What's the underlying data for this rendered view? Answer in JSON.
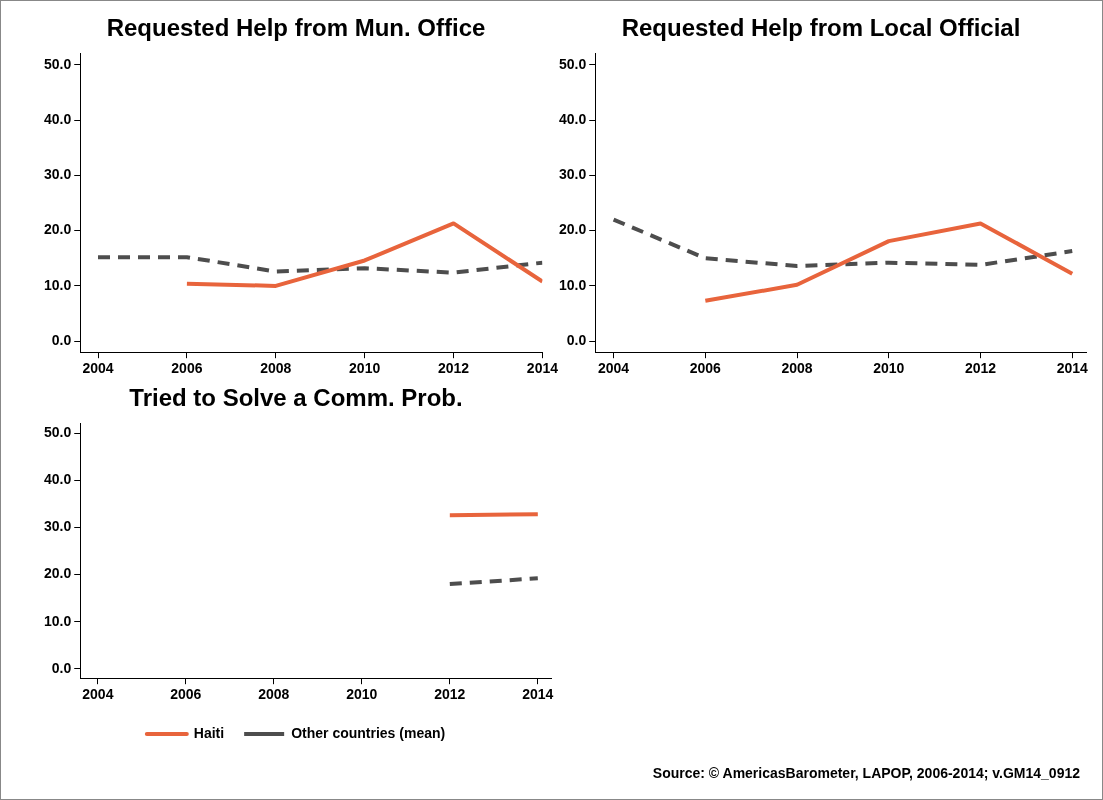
{
  "chart_data": [
    {
      "type": "line",
      "title": "Requested Help from Mun. Office",
      "x": [
        2004,
        2006,
        2008,
        2010,
        2012,
        2014
      ],
      "xlim": [
        2003.6,
        2014
      ],
      "xticks": [
        2004,
        2006,
        2008,
        2010,
        2012,
        2014
      ],
      "ylim": [
        -2,
        52
      ],
      "yticks": [
        {
          "value": 0,
          "label": "0.0"
        },
        {
          "value": 10,
          "label": "10.0"
        },
        {
          "value": 20,
          "label": "20.0"
        },
        {
          "value": 30,
          "label": "30.0"
        },
        {
          "value": 40,
          "label": "40.0"
        },
        {
          "value": 50,
          "label": "50.0"
        }
      ],
      "grid": false,
      "legend": false,
      "marker": "none",
      "series": [
        {
          "color": "#e8643c",
          "line_style": "solid",
          "values": [
            null,
            10.4,
            10.0,
            14.6,
            21.3,
            10.8
          ]
        },
        {
          "color": "#4d4d4d",
          "line_style": "dashed",
          "values": [
            15.2,
            15.2,
            12.6,
            13.2,
            12.4,
            14.2
          ]
        }
      ]
    },
    {
      "type": "line",
      "title": "Requested Help from Local Official",
      "x": [
        2004,
        2006,
        2008,
        2010,
        2012,
        2014
      ],
      "xlim": [
        2003.6,
        2014.3
      ],
      "xticks": [
        2004,
        2006,
        2008,
        2010,
        2012,
        2014
      ],
      "ylim": [
        -2,
        52
      ],
      "yticks": [
        {
          "value": 0,
          "label": "0.0"
        },
        {
          "value": 10,
          "label": "10.0"
        },
        {
          "value": 20,
          "label": "20.0"
        },
        {
          "value": 30,
          "label": "30.0"
        },
        {
          "value": 40,
          "label": "40.0"
        },
        {
          "value": 50,
          "label": "50.0"
        }
      ],
      "grid": false,
      "legend": false,
      "marker": "none",
      "series": [
        {
          "color": "#e8643c",
          "line_style": "solid",
          "values": [
            null,
            7.3,
            10.2,
            18.1,
            21.3,
            12.2
          ]
        },
        {
          "color": "#4d4d4d",
          "line_style": "dashed",
          "values": [
            22.0,
            15.0,
            13.6,
            14.2,
            13.8,
            16.3
          ]
        }
      ]
    },
    {
      "type": "line",
      "title": "Tried to Solve a Comm. Prob.",
      "x": [
        2012,
        2014
      ],
      "xlim": [
        2003.6,
        2014.3
      ],
      "xticks": [
        2004,
        2006,
        2008,
        2010,
        2012,
        2014
      ],
      "ylim": [
        -2,
        52
      ],
      "yticks": [
        {
          "value": 0,
          "label": "0.0"
        },
        {
          "value": 10,
          "label": "10.0"
        },
        {
          "value": 20,
          "label": "20.0"
        },
        {
          "value": 30,
          "label": "30.0"
        },
        {
          "value": 40,
          "label": "40.0"
        },
        {
          "value": 50,
          "label": "50.0"
        }
      ],
      "grid": false,
      "legend": "bottom",
      "marker": "none",
      "annotations": [
        "Source: © AmericasBarometer, LAPOP, 2006-2014; v.GM14_0912"
      ],
      "series": [
        {
          "name": "Haiti",
          "color": "#e8643c",
          "line_style": "solid",
          "values": [
            32.6,
            32.8
          ]
        },
        {
          "name": "Other countries (mean)",
          "color": "#4d4d4d",
          "line_style": "dashed",
          "values": [
            18.0,
            19.2
          ]
        }
      ]
    }
  ]
}
